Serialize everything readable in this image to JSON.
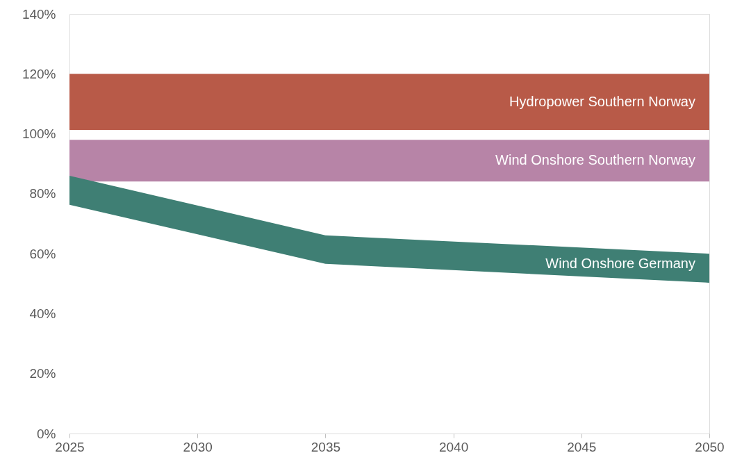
{
  "chart_data": {
    "type": "area",
    "series": [
      {
        "name": "Wind Onshore Germany",
        "color": "#3f7f74",
        "x": [
          2025,
          2035,
          2050
        ],
        "values": [
          86.0,
          66.1,
          60.0
        ]
      },
      {
        "color": "#ffffff",
        "x": [
          2025,
          2035,
          2050
        ],
        "values": [
          76.3,
          56.6,
          50.3
        ]
      }
    ],
    "bands": [
      {
        "axis": "y",
        "from": 101.3,
        "to": 120,
        "label": "Hydropower Southern Norway",
        "color": "#b85a48"
      },
      {
        "axis": "y",
        "from": 84.1,
        "to": 98.0,
        "label": "Wind Onshore Southern Norway",
        "color": "#b784a7"
      }
    ],
    "xlim": [
      2025,
      2050
    ],
    "xticks": [
      2025,
      2030,
      2035,
      2040,
      2045,
      2050
    ],
    "ylim": [
      0,
      140
    ],
    "yticks": [
      {
        "value": 0,
        "label": "0%"
      },
      {
        "value": 20,
        "label": "20%"
      },
      {
        "value": 40,
        "label": "40%"
      },
      {
        "value": 60,
        "label": "60%"
      },
      {
        "value": 80,
        "label": "80%"
      },
      {
        "value": 100,
        "label": "100%"
      },
      {
        "value": 120,
        "label": "120%"
      },
      {
        "value": 140,
        "label": "140%"
      }
    ],
    "grid": false
  }
}
